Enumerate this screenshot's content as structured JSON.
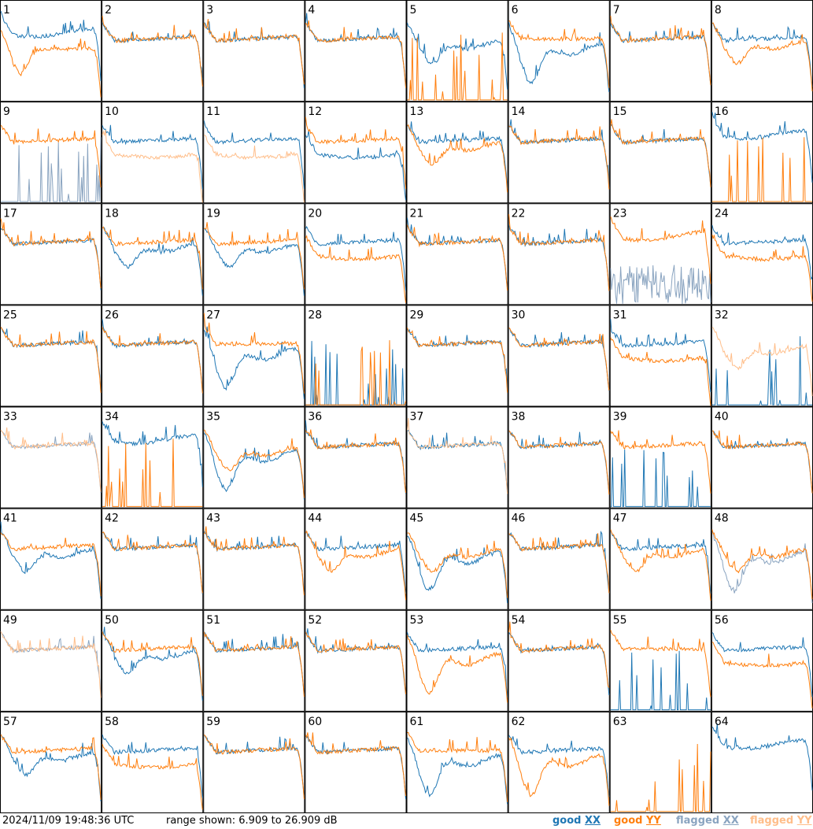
{
  "chart_data": {
    "type": "line",
    "layout": "8x8 small multiples",
    "timestamp": "2024/11/09 19:48:36 UTC",
    "range_text": "range shown: 6.909 to 26.909 dB",
    "y_range_db": [
      6.909,
      26.909
    ],
    "legend": [
      {
        "label": "good",
        "pol": "XX",
        "color": "#1f77b4"
      },
      {
        "label": "good",
        "pol": "YY",
        "color": "#ff7f0e"
      },
      {
        "label": "flagged",
        "pol": "XX",
        "color": "#8aa4c0"
      },
      {
        "label": "flagged",
        "pol": "YY",
        "color": "#ffbe8a"
      }
    ],
    "colors": {
      "good_xx": "#1f77b4",
      "good_yy": "#ff7f0e",
      "flagged_xx": "#8aa4c0",
      "flagged_yy": "#ffbe8a"
    },
    "panels": [
      {
        "id": "1",
        "xx": "good",
        "yy": "good",
        "shape_xx": "flat",
        "shape_yy": "lowdip"
      },
      {
        "id": "2",
        "xx": "good",
        "yy": "good",
        "shape_xx": "normal",
        "shape_yy": "normal"
      },
      {
        "id": "3",
        "xx": "good",
        "yy": "good",
        "shape_xx": "normal",
        "shape_yy": "normal"
      },
      {
        "id": "4",
        "xx": "good",
        "yy": "good",
        "shape_xx": "normal",
        "shape_yy": "normal"
      },
      {
        "id": "5",
        "xx": "good",
        "yy": "good",
        "shape_xx": "dip",
        "shape_yy": "spikes_low"
      },
      {
        "id": "6",
        "xx": "good",
        "yy": "good",
        "shape_xx": "deepdip",
        "shape_yy": "high"
      },
      {
        "id": "7",
        "xx": "good",
        "yy": "good",
        "shape_xx": "normal",
        "shape_yy": "normal"
      },
      {
        "id": "8",
        "xx": "good",
        "yy": "good",
        "shape_xx": "normal",
        "shape_yy": "dip"
      },
      {
        "id": "9",
        "xx": "flagged",
        "yy": "good",
        "shape_xx": "spikes_low",
        "shape_yy": "normal"
      },
      {
        "id": "10",
        "xx": "good",
        "yy": "flagged",
        "shape_xx": "normal",
        "shape_yy": "lower"
      },
      {
        "id": "11",
        "xx": "good",
        "yy": "flagged",
        "shape_xx": "normal",
        "shape_yy": "lower"
      },
      {
        "id": "12",
        "xx": "good",
        "yy": "good",
        "shape_xx": "lower",
        "shape_yy": "normal"
      },
      {
        "id": "13",
        "xx": "good",
        "yy": "good",
        "shape_xx": "normal",
        "shape_yy": "dip"
      },
      {
        "id": "14",
        "xx": "good",
        "yy": "good",
        "shape_xx": "normal",
        "shape_yy": "normal"
      },
      {
        "id": "15",
        "xx": "good",
        "yy": "good",
        "shape_xx": "normal",
        "shape_yy": "normal"
      },
      {
        "id": "16",
        "xx": "good",
        "yy": "good",
        "shape_xx": "flat",
        "shape_yy": "spikes_low"
      },
      {
        "id": "17",
        "xx": "good",
        "yy": "good",
        "shape_xx": "normal",
        "shape_yy": "normal"
      },
      {
        "id": "18",
        "xx": "good",
        "yy": "good",
        "shape_xx": "dip",
        "shape_yy": "normal"
      },
      {
        "id": "19",
        "xx": "good",
        "yy": "good",
        "shape_xx": "dip",
        "shape_yy": "normal"
      },
      {
        "id": "20",
        "xx": "good",
        "yy": "good",
        "shape_xx": "normal",
        "shape_yy": "lower"
      },
      {
        "id": "21",
        "xx": "good",
        "yy": "good",
        "shape_xx": "normal",
        "shape_yy": "normal"
      },
      {
        "id": "22",
        "xx": "good",
        "yy": "good",
        "shape_xx": "normal",
        "shape_yy": "normal"
      },
      {
        "id": "23",
        "xx": "flagged",
        "yy": "good",
        "shape_xx": "noisy_low",
        "shape_yy": "flat"
      },
      {
        "id": "24",
        "xx": "good",
        "yy": "good",
        "shape_xx": "normal",
        "shape_yy": "lower"
      },
      {
        "id": "25",
        "xx": "good",
        "yy": "good",
        "shape_xx": "normal",
        "shape_yy": "normal"
      },
      {
        "id": "26",
        "xx": "good",
        "yy": "good",
        "shape_xx": "normal",
        "shape_yy": "normal"
      },
      {
        "id": "27",
        "xx": "good",
        "yy": "good",
        "shape_xx": "deepdip",
        "shape_yy": "high"
      },
      {
        "id": "28",
        "xx": "good",
        "yy": "good",
        "shape_xx": "spikes_low",
        "shape_yy": "spikes_low"
      },
      {
        "id": "29",
        "xx": "good",
        "yy": "good",
        "shape_xx": "normal",
        "shape_yy": "normal"
      },
      {
        "id": "30",
        "xx": "good",
        "yy": "good",
        "shape_xx": "normal",
        "shape_yy": "normal"
      },
      {
        "id": "31",
        "xx": "good",
        "yy": "good",
        "shape_xx": "normal",
        "shape_yy": "lower"
      },
      {
        "id": "32",
        "xx": "good",
        "yy": "flagged",
        "shape_xx": "spikes_low",
        "shape_yy": "dip"
      },
      {
        "id": "33",
        "xx": "flagged",
        "yy": "flagged",
        "shape_xx": "normal",
        "shape_yy": "normal"
      },
      {
        "id": "34",
        "xx": "good",
        "yy": "good",
        "shape_xx": "flat",
        "shape_yy": "spikes_low"
      },
      {
        "id": "35",
        "xx": "good",
        "yy": "good",
        "shape_xx": "deepdip",
        "shape_yy": "dip"
      },
      {
        "id": "36",
        "xx": "good",
        "yy": "good",
        "shape_xx": "normal",
        "shape_yy": "normal"
      },
      {
        "id": "37",
        "xx": "good",
        "yy": "flagged",
        "shape_xx": "normal",
        "shape_yy": "normal"
      },
      {
        "id": "38",
        "xx": "good",
        "yy": "good",
        "shape_xx": "normal",
        "shape_yy": "normal"
      },
      {
        "id": "39",
        "xx": "good",
        "yy": "good",
        "shape_xx": "spikes_low",
        "shape_yy": "normal"
      },
      {
        "id": "40",
        "xx": "good",
        "yy": "good",
        "shape_xx": "normal",
        "shape_yy": "normal"
      },
      {
        "id": "41",
        "xx": "good",
        "yy": "good",
        "shape_xx": "dip",
        "shape_yy": "normal"
      },
      {
        "id": "42",
        "xx": "good",
        "yy": "good",
        "shape_xx": "normal",
        "shape_yy": "normal"
      },
      {
        "id": "43",
        "xx": "good",
        "yy": "good",
        "shape_xx": "normal",
        "shape_yy": "normal"
      },
      {
        "id": "44",
        "xx": "good",
        "yy": "good",
        "shape_xx": "normal",
        "shape_yy": "dip"
      },
      {
        "id": "45",
        "xx": "good",
        "yy": "good",
        "shape_xx": "deepdip",
        "shape_yy": "dip"
      },
      {
        "id": "46",
        "xx": "good",
        "yy": "good",
        "shape_xx": "normal",
        "shape_yy": "normal"
      },
      {
        "id": "47",
        "xx": "good",
        "yy": "good",
        "shape_xx": "normal",
        "shape_yy": "dip"
      },
      {
        "id": "48",
        "xx": "flagged",
        "yy": "good",
        "shape_xx": "deepdip",
        "shape_yy": "dip"
      },
      {
        "id": "49",
        "xx": "flagged",
        "yy": "flagged",
        "shape_xx": "normal",
        "shape_yy": "normal"
      },
      {
        "id": "50",
        "xx": "good",
        "yy": "good",
        "shape_xx": "dip",
        "shape_yy": "normal"
      },
      {
        "id": "51",
        "xx": "good",
        "yy": "good",
        "shape_xx": "normal",
        "shape_yy": "normal"
      },
      {
        "id": "52",
        "xx": "good",
        "yy": "good",
        "shape_xx": "normal",
        "shape_yy": "normal"
      },
      {
        "id": "53",
        "xx": "good",
        "yy": "good",
        "shape_xx": "normal",
        "shape_yy": "deepdip"
      },
      {
        "id": "54",
        "xx": "good",
        "yy": "good",
        "shape_xx": "normal",
        "shape_yy": "normal"
      },
      {
        "id": "55",
        "xx": "good",
        "yy": "good",
        "shape_xx": "spikes_low",
        "shape_yy": "high"
      },
      {
        "id": "56",
        "xx": "good",
        "yy": "good",
        "shape_xx": "normal",
        "shape_yy": "lower"
      },
      {
        "id": "57",
        "xx": "good",
        "yy": "good",
        "shape_xx": "dip",
        "shape_yy": "normal"
      },
      {
        "id": "58",
        "xx": "good",
        "yy": "good",
        "shape_xx": "normal",
        "shape_yy": "lower"
      },
      {
        "id": "59",
        "xx": "good",
        "yy": "good",
        "shape_xx": "normal",
        "shape_yy": "normal"
      },
      {
        "id": "60",
        "xx": "good",
        "yy": "good",
        "shape_xx": "normal",
        "shape_yy": "normal"
      },
      {
        "id": "61",
        "xx": "good",
        "yy": "good",
        "shape_xx": "deepdip",
        "shape_yy": "high"
      },
      {
        "id": "62",
        "xx": "good",
        "yy": "good",
        "shape_xx": "normal",
        "shape_yy": "deepdip"
      },
      {
        "id": "63",
        "xx": "good",
        "yy": "good",
        "shape_xx": "none",
        "shape_yy": "spikes_low"
      },
      {
        "id": "64",
        "xx": "good",
        "yy": "good",
        "shape_xx": "flat",
        "shape_yy": "none"
      }
    ]
  }
}
